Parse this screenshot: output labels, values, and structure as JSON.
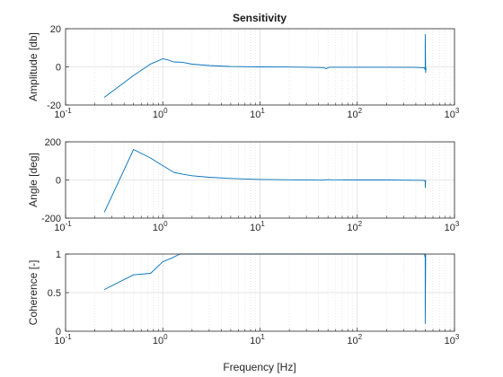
{
  "figure": {
    "background": "#ffffff"
  },
  "chart_data": [
    {
      "type": "line",
      "title": "Sensitivity",
      "xlabel": "",
      "ylabel": "Amplitude [db]",
      "xscale": "log",
      "xlim": [
        0.1,
        1000
      ],
      "ylim": [
        -20,
        20
      ],
      "yticks": [
        "-20",
        "0",
        "20"
      ],
      "xticks": [
        {
          "base": "10",
          "exp": "-1"
        },
        {
          "base": "10",
          "exp": "0"
        },
        {
          "base": "10",
          "exp": "1"
        },
        {
          "base": "10",
          "exp": "2"
        },
        {
          "base": "10",
          "exp": "3"
        }
      ],
      "grid": true,
      "color": "#0072bd",
      "x": [
        0.25,
        0.5,
        0.75,
        1.0,
        1.1,
        1.3,
        1.6,
        2,
        3,
        5,
        10,
        20,
        30,
        45,
        48,
        50,
        52,
        60,
        100,
        200,
        400,
        490,
        500,
        500,
        505,
        510
      ],
      "y": [
        -16,
        -4.5,
        1.5,
        4.3,
        3.8,
        2.6,
        2.4,
        1.4,
        0.7,
        0.2,
        0,
        -0.1,
        -0.2,
        -0.4,
        -1.0,
        -0.4,
        -0.2,
        -0.2,
        -0.2,
        -0.2,
        -0.3,
        -0.5,
        -1.5,
        17,
        -3,
        -0.5
      ]
    },
    {
      "type": "line",
      "title": "",
      "xlabel": "",
      "ylabel": "Angle [deg]",
      "xscale": "log",
      "xlim": [
        0.1,
        1000
      ],
      "ylim": [
        -200,
        200
      ],
      "yticks": [
        "-200",
        "0",
        "200"
      ],
      "xticks": [
        {
          "base": "10",
          "exp": "-1"
        },
        {
          "base": "10",
          "exp": "0"
        },
        {
          "base": "10",
          "exp": "1"
        },
        {
          "base": "10",
          "exp": "2"
        },
        {
          "base": "10",
          "exp": "3"
        }
      ],
      "grid": true,
      "color": "#0072bd",
      "x": [
        0.25,
        0.5,
        0.75,
        1.0,
        1.3,
        1.6,
        2,
        3,
        5,
        10,
        20,
        45,
        50,
        55,
        100,
        200,
        480,
        500,
        500,
        505
      ],
      "y": [
        -170,
        160,
        115,
        75,
        40,
        30,
        22,
        14,
        8,
        3,
        1,
        -1,
        2,
        1,
        0,
        0,
        -2,
        -5,
        -40,
        0
      ]
    },
    {
      "type": "line",
      "title": "",
      "xlabel": "Frequency [Hz]",
      "ylabel": "Coherence [-]",
      "xscale": "log",
      "xlim": [
        0.1,
        1000
      ],
      "ylim": [
        0,
        1
      ],
      "yticks": [
        "0",
        "0.5",
        "1"
      ],
      "xticks": [
        {
          "base": "10",
          "exp": "-1"
        },
        {
          "base": "10",
          "exp": "0"
        },
        {
          "base": "10",
          "exp": "1"
        },
        {
          "base": "10",
          "exp": "2"
        },
        {
          "base": "10",
          "exp": "3"
        }
      ],
      "grid": true,
      "color": "#0072bd",
      "x": [
        0.25,
        0.5,
        0.75,
        1.0,
        1.25,
        1.5,
        1.6,
        2,
        5,
        10,
        50,
        100,
        300,
        490,
        500,
        500,
        505
      ],
      "y": [
        0.54,
        0.73,
        0.75,
        0.9,
        0.95,
        1.0,
        1.0,
        1.0,
        1.0,
        1.0,
        1.0,
        1.0,
        1.0,
        1.0,
        0.95,
        0.1,
        1.0
      ]
    }
  ]
}
